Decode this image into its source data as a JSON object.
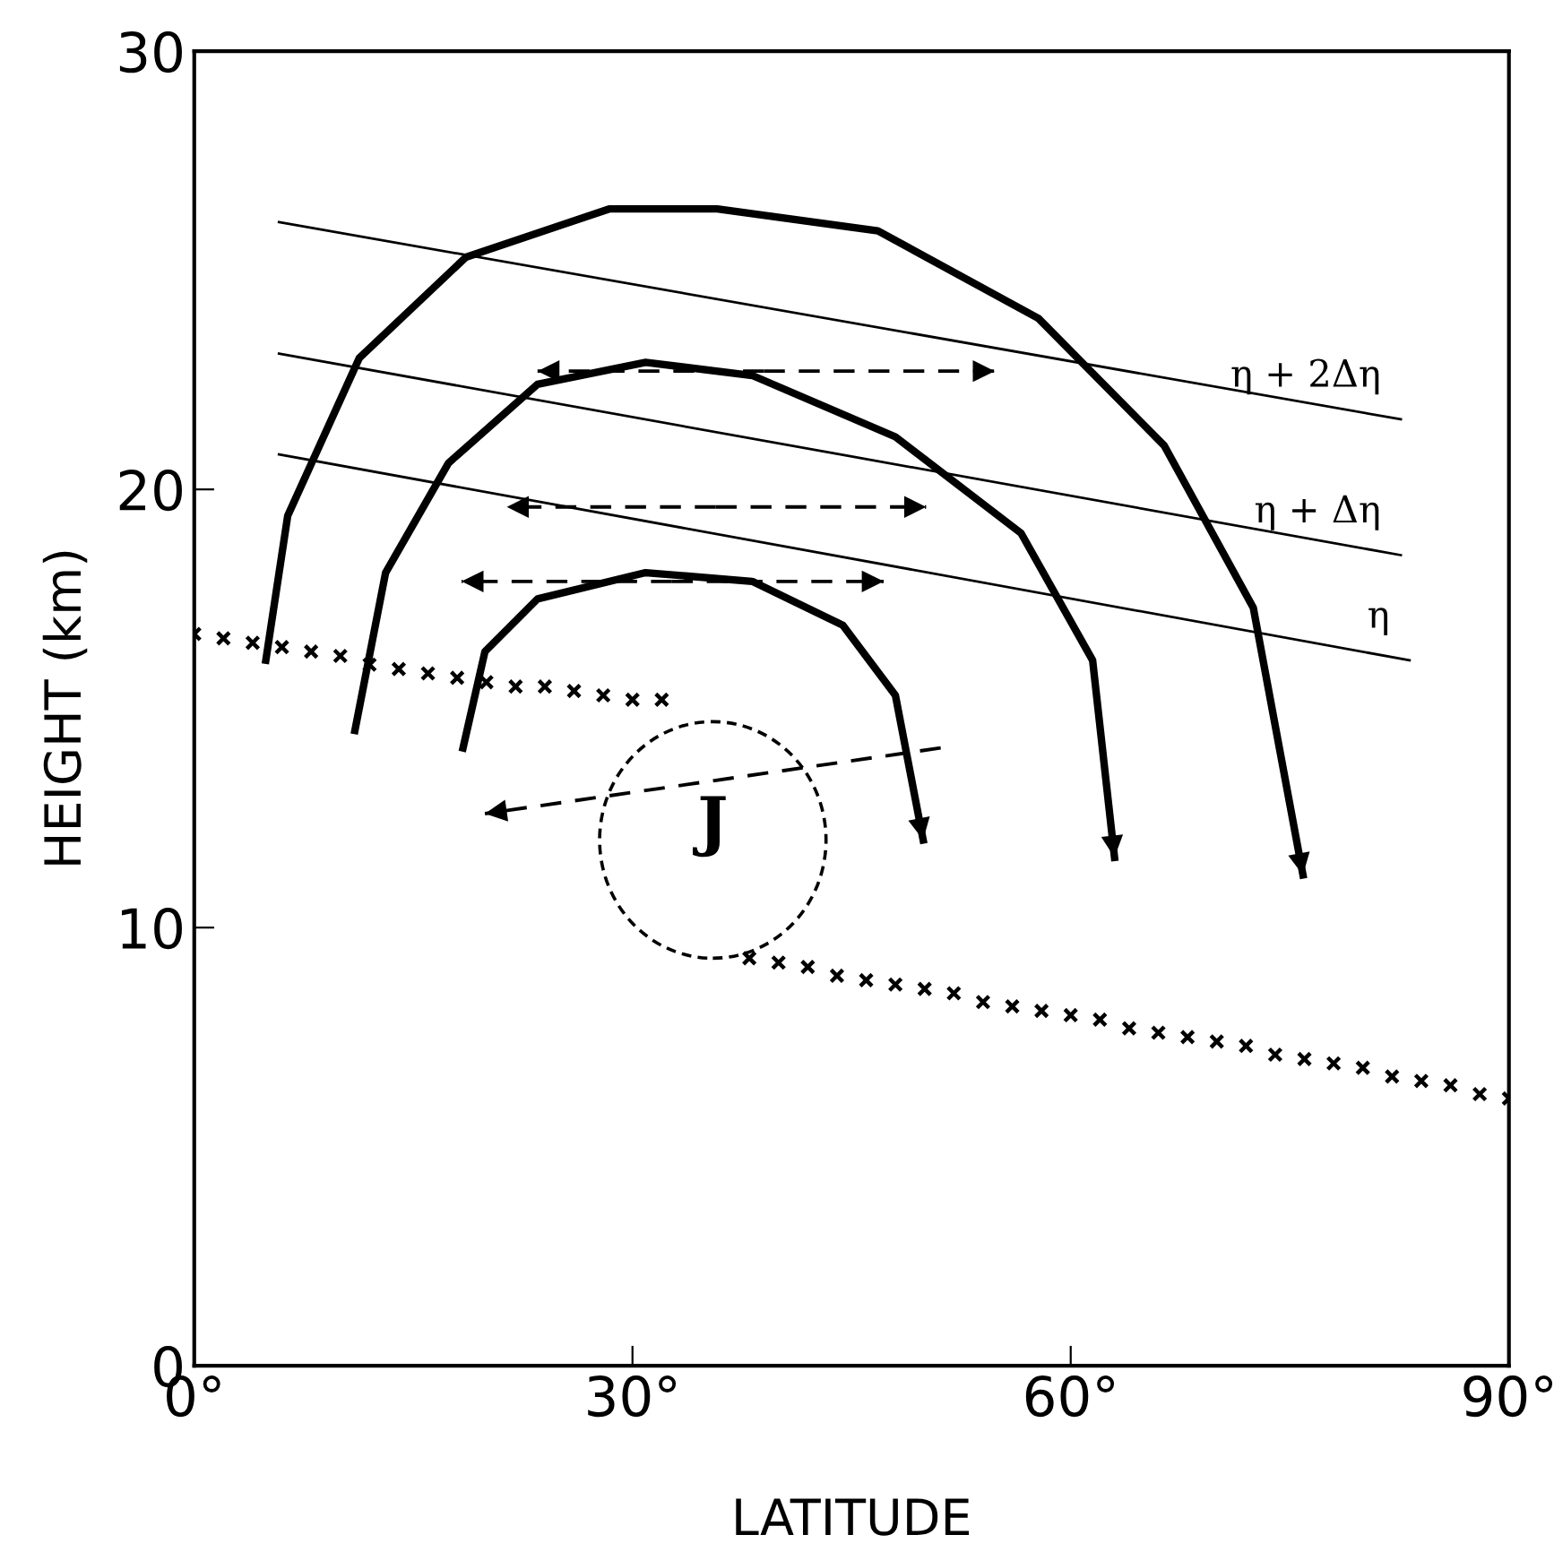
{
  "chart_data": {
    "type": "line",
    "xlabel": "LATITUDE",
    "ylabel": "HEIGHT (km)",
    "xlim": [
      0,
      90
    ],
    "ylim": [
      0,
      30
    ],
    "xticks": [
      {
        "value": 0,
        "label": "0°"
      },
      {
        "value": 30,
        "label": "30°"
      },
      {
        "value": 60,
        "label": "60°"
      },
      {
        "value": 90,
        "label": "90°"
      }
    ],
    "yticks": [
      0,
      10,
      20,
      30
    ],
    "grid": false,
    "series": [
      {
        "color": "#000000",
        "x": [
          5.8,
          82.6
        ],
        "values": [
          26.1,
          21.6
        ]
      },
      {
        "color": "#000000",
        "x": [
          5.8,
          82.6
        ],
        "values": [
          23.1,
          18.5
        ]
      },
      {
        "color": "#000000",
        "x": [
          5.8,
          83.2
        ],
        "values": [
          20.8,
          16.1
        ]
      },
      {
        "type": "scatter",
        "color": "#000000",
        "marker": "cross",
        "x": [
          0,
          2,
          4,
          6,
          8,
          10,
          12,
          14,
          16,
          18,
          20,
          22,
          24,
          26,
          28,
          30,
          32,
          38,
          40,
          42,
          44,
          46,
          48,
          50,
          52,
          54,
          56,
          58,
          60,
          62,
          64,
          66,
          68,
          70,
          72,
          74,
          76,
          78,
          80,
          82,
          84,
          86,
          88,
          90
        ],
        "values": [
          16.7,
          16.6,
          16.5,
          16.4,
          16.3,
          16.2,
          16.0,
          15.9,
          15.8,
          15.7,
          15.6,
          15.5,
          15.5,
          15.4,
          15.3,
          15.2,
          15.2,
          9.3,
          9.2,
          9.1,
          8.9,
          8.8,
          8.7,
          8.6,
          8.5,
          8.3,
          8.2,
          8.1,
          8.0,
          7.9,
          7.7,
          7.6,
          7.5,
          7.4,
          7.3,
          7.1,
          7.0,
          6.9,
          6.8,
          6.6,
          6.5,
          6.4,
          6.2,
          6.1
        ]
      },
      {
        "type": "line",
        "color": "#000000",
        "line_style": "solid",
        "x": [
          4.9,
          6.4,
          11.3,
          18.6,
          28.4,
          35.8,
          46.8,
          57.8,
          66.4,
          72.5,
          75.9
        ],
        "values": [
          16.1,
          19.4,
          23.0,
          25.3,
          26.4,
          26.4,
          25.9,
          23.9,
          21.0,
          17.3,
          11.2
        ]
      },
      {
        "type": "line",
        "color": "#000000",
        "line_style": "solid",
        "x": [
          11.0,
          13.1,
          17.4,
          23.5,
          30.9,
          38.2,
          48.0,
          56.6,
          61.5,
          63.0
        ],
        "values": [
          14.5,
          18.1,
          20.6,
          22.4,
          22.9,
          22.6,
          21.2,
          19.0,
          16.1,
          11.6
        ]
      },
      {
        "type": "line",
        "color": "#000000",
        "line_style": "solid",
        "x": [
          18.4,
          19.9,
          23.5,
          30.9,
          38.2,
          44.4,
          48.0,
          49.9
        ],
        "values": [
          14.1,
          16.3,
          17.5,
          18.1,
          17.9,
          16.9,
          15.3,
          12.0
        ]
      },
      {
        "type": "line",
        "color": "#000000",
        "line_style": "dashed",
        "x": [
          39.0,
          23.5
        ],
        "values": [
          22.7,
          22.7
        ]
      },
      {
        "type": "line",
        "color": "#000000",
        "line_style": "dashed",
        "x": [
          39.0,
          54.8
        ],
        "values": [
          22.7,
          22.7
        ]
      },
      {
        "type": "line",
        "color": "#000000",
        "line_style": "dashed",
        "x": [
          35.7,
          21.4
        ],
        "values": [
          19.6,
          19.6
        ]
      },
      {
        "type": "line",
        "color": "#000000",
        "line_style": "dashed",
        "x": [
          35.7,
          50.1
        ],
        "values": [
          19.6,
          19.6
        ]
      },
      {
        "type": "line",
        "color": "#000000",
        "line_style": "dashed",
        "x": [
          32.7,
          18.3
        ],
        "values": [
          17.9,
          17.9
        ]
      },
      {
        "type": "line",
        "color": "#000000",
        "line_style": "dashed",
        "x": [
          32.7,
          47.2
        ],
        "values": [
          17.9,
          17.9
        ]
      },
      {
        "type": "line",
        "color": "#000000",
        "line_style": "dashed",
        "x": [
          51.1,
          19.9
        ],
        "values": [
          14.1,
          12.6
        ]
      }
    ],
    "annotations": [
      "η + 2Δη",
      "η + Δη",
      "η",
      "J"
    ]
  }
}
